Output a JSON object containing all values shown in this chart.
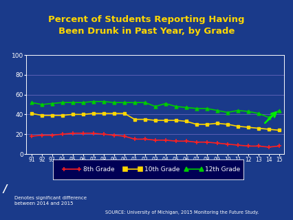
{
  "title": "Percent of Students Reporting Having\nBeen Drunk in Past Year, by Grade",
  "title_color": "#FFD700",
  "background_color": "#1a3a8a",
  "plot_bg_color": "#1a3a8a",
  "grid_color": "#6666bb",
  "text_color": "white",
  "years": [
    "91",
    "92",
    "93",
    "94",
    "95",
    "96",
    "97",
    "98",
    "99",
    "00",
    "01",
    "02",
    "03",
    "04",
    "05",
    "06",
    "07",
    "08",
    "09",
    "10",
    "11",
    "12",
    "13",
    "14",
    "15"
  ],
  "grade8": [
    18,
    19,
    19,
    20,
    21,
    21,
    21,
    20,
    19,
    18,
    15,
    15,
    14,
    14,
    13,
    13,
    12,
    12,
    11,
    10,
    9,
    8,
    8,
    7,
    8
  ],
  "grade10": [
    41,
    39,
    39,
    39,
    40,
    40,
    41,
    41,
    41,
    41,
    35,
    35,
    34,
    34,
    34,
    33,
    30,
    30,
    31,
    30,
    28,
    27,
    26,
    25,
    24
  ],
  "grade12": [
    52,
    50,
    51,
    52,
    52,
    52,
    53,
    53,
    52,
    52,
    52,
    52,
    48,
    51,
    48,
    47,
    46,
    46,
    44,
    42,
    44,
    43,
    41,
    37,
    44
  ],
  "grade8_color": "#FF2020",
  "grade10_color": "#FFD700",
  "grade12_color": "#00CC00",
  "arrow_color": "#00EE00",
  "source_text": "SOURCE: University of Michigan, 2015 Monitoring the Future Study.",
  "footnote_text": "Denotes significant difference\nbetween 2014 and 2015",
  "ylim": [
    0,
    100
  ],
  "yticks": [
    0,
    20,
    40,
    60,
    80,
    100
  ]
}
